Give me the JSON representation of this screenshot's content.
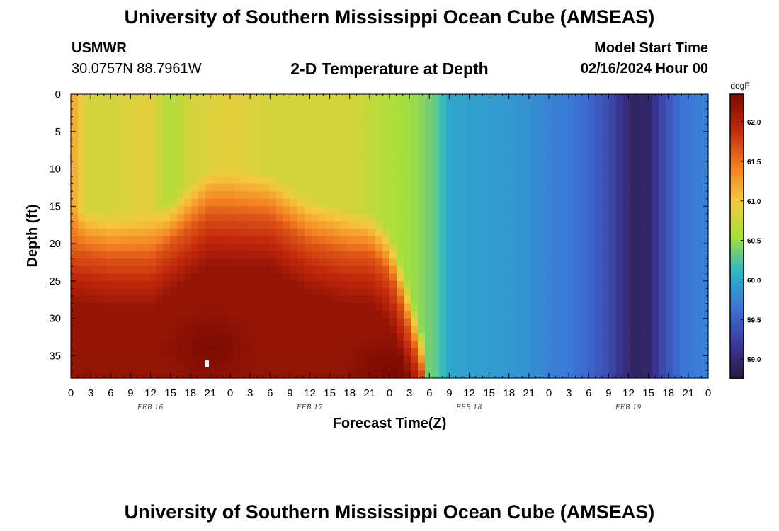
{
  "header": {
    "title": "University of Southern Mississippi Ocean Cube (AMSEAS)",
    "station": "USMWR",
    "coords": "30.0757N  88.7961W",
    "chart_title": "2-D Temperature at Depth",
    "model_start_label": "Model Start Time",
    "model_start_date": "02/16/2024 Hour 00"
  },
  "footer": {
    "title": "University of Southern Mississippi Ocean Cube (AMSEAS)"
  },
  "chart_data": {
    "type": "heatmap",
    "xlabel": "Forecast Time(Z)",
    "ylabel": "Depth (ft)",
    "x_range_hours": [
      0,
      96
    ],
    "x_ticks_hours": [
      0,
      3,
      6,
      9,
      12,
      15,
      18,
      21,
      24,
      27,
      30,
      33,
      36,
      39,
      42,
      45,
      48,
      51,
      54,
      57,
      60,
      63,
      66,
      69,
      72,
      75,
      78,
      81,
      84,
      87,
      90,
      93,
      96
    ],
    "x_tick_labels": [
      "0",
      "3",
      "6",
      "9",
      "12",
      "15",
      "18",
      "21",
      "0",
      "3",
      "6",
      "9",
      "12",
      "15",
      "18",
      "21",
      "0",
      "3",
      "6",
      "9",
      "12",
      "15",
      "18",
      "21",
      "0",
      "3",
      "6",
      "9",
      "12",
      "15",
      "18",
      "21",
      "0"
    ],
    "date_labels": [
      {
        "text": "FEB 16",
        "hour": 12
      },
      {
        "text": "FEB 17",
        "hour": 36
      },
      {
        "text": "FEB 18",
        "hour": 60
      },
      {
        "text": "FEB 19",
        "hour": 84
      }
    ],
    "y_range_ft": [
      0,
      38
    ],
    "y_ticks": [
      0,
      5,
      10,
      15,
      20,
      25,
      30,
      35
    ],
    "y_tick_labels": [
      "0",
      "5",
      "10",
      "15",
      "20",
      "25",
      "30",
      "35"
    ],
    "colorbar": {
      "unit": "degF",
      "range": [
        58.75,
        62.35
      ],
      "ticks": [
        59.0,
        59.5,
        60.0,
        60.5,
        61.0,
        61.5,
        62.0
      ],
      "tick_labels": [
        "59.0",
        "59.5",
        "60.0",
        "60.5",
        "61.0",
        "61.5",
        "62.0"
      ],
      "colors": [
        "#2a1840",
        "#3c3a9c",
        "#3d73d8",
        "#2bb6c8",
        "#a6e03a",
        "#f7c93d",
        "#f27a1f",
        "#c2280c",
        "#7b0a02"
      ]
    },
    "surface_temp_by_hour": [
      {
        "hour": 0,
        "value": 61.2
      },
      {
        "hour": 1,
        "value": 61.1
      },
      {
        "hour": 2,
        "value": 60.8
      },
      {
        "hour": 6,
        "value": 60.8
      },
      {
        "hour": 12,
        "value": 60.9
      },
      {
        "hour": 15,
        "value": 60.6
      },
      {
        "hour": 18,
        "value": 60.8
      },
      {
        "hour": 24,
        "value": 60.9
      },
      {
        "hour": 30,
        "value": 60.8
      },
      {
        "hour": 36,
        "value": 60.8
      },
      {
        "hour": 42,
        "value": 60.8
      },
      {
        "hour": 48,
        "value": 60.6
      },
      {
        "hour": 52,
        "value": 60.5
      },
      {
        "hour": 55,
        "value": 60.3
      },
      {
        "hour": 57,
        "value": 60.0
      },
      {
        "hour": 60,
        "value": 59.95
      },
      {
        "hour": 66,
        "value": 59.9
      },
      {
        "hour": 69,
        "value": 59.85
      },
      {
        "hour": 72,
        "value": 59.75
      },
      {
        "hour": 75,
        "value": 59.7
      },
      {
        "hour": 78,
        "value": 59.55
      },
      {
        "hour": 81,
        "value": 59.35
      },
      {
        "hour": 83,
        "value": 59.1
      },
      {
        "hour": 85,
        "value": 58.9
      },
      {
        "hour": 87,
        "value": 58.95
      },
      {
        "hour": 89,
        "value": 59.3
      },
      {
        "hour": 92,
        "value": 59.65
      },
      {
        "hour": 96,
        "value": 59.75
      }
    ],
    "warm_layer_top_ft_by_hour": [
      {
        "hour": 0,
        "value": 21
      },
      {
        "hour": 6,
        "value": 22
      },
      {
        "hour": 12,
        "value": 22
      },
      {
        "hour": 18,
        "value": 18
      },
      {
        "hour": 21,
        "value": 16
      },
      {
        "hour": 30,
        "value": 16.5
      },
      {
        "hour": 36,
        "value": 20
      },
      {
        "hour": 42,
        "value": 21.5
      },
      {
        "hour": 45,
        "value": 21.5
      },
      {
        "hour": 48,
        "value": 24
      },
      {
        "hour": 50,
        "value": 29
      },
      {
        "hour": 52,
        "value": 35
      },
      {
        "hour": 53,
        "value": 38
      }
    ],
    "deep_warm_core": [
      {
        "hour": 21,
        "depth_ft": 34,
        "value": 62.3
      },
      {
        "hour": 48,
        "depth_ft": 37,
        "value": 62.3
      }
    ]
  }
}
